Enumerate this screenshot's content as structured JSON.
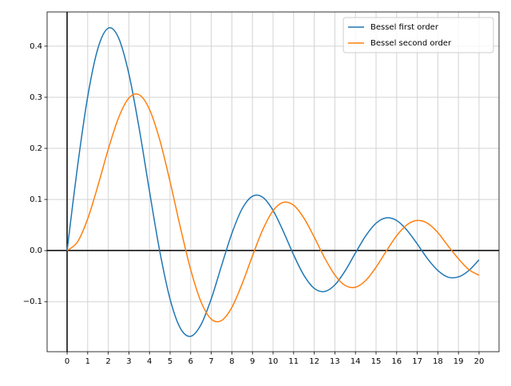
{
  "chart_data": {
    "type": "line",
    "x": [
      0,
      0.5,
      1,
      1.5,
      2,
      2.5,
      3,
      3.5,
      4,
      4.5,
      5,
      5.5,
      6,
      6.5,
      7,
      7.5,
      8,
      8.5,
      9,
      9.5,
      10,
      10.5,
      11,
      11.5,
      12,
      12.5,
      13,
      13.5,
      14,
      14.5,
      15,
      15.5,
      16,
      16.5,
      17,
      17.5,
      18,
      18.5,
      19,
      19.5,
      20
    ],
    "series": [
      {
        "name": "Bessel first order",
        "color": "#1f77b4",
        "values": [
          0,
          0.1625,
          0.3012,
          0.3962,
          0.4354,
          0.4162,
          0.3457,
          0.239,
          0.1161,
          -0.0015,
          -0.0951,
          -0.1522,
          -0.1678,
          -0.1451,
          -0.0943,
          -0.0295,
          0.0337,
          0.0819,
          0.1063,
          0.1042,
          0.0785,
          0.0373,
          -0.0087,
          -0.0486,
          -0.074,
          -0.0802,
          -0.0673,
          -0.0397,
          -0.0047,
          0.0289,
          0.0535,
          0.064,
          0.0588,
          0.0399,
          0.0129,
          -0.016,
          -0.039,
          -0.0521,
          -0.0516,
          -0.0392,
          -0.0181
        ]
      },
      {
        "name": "Bessel second order",
        "color": "#ff7f0e",
        "values": [
          0,
          0.0166,
          0.062,
          0.1274,
          0.1984,
          0.26,
          0.2986,
          0.305,
          0.2763,
          0.2163,
          0.1347,
          0.0453,
          -0.0373,
          -0.1001,
          -0.1343,
          -0.1369,
          -0.1111,
          -0.065,
          -0.0104,
          0.0407,
          0.078,
          0.0944,
          0.0886,
          0.0634,
          0.0262,
          -0.014,
          -0.0478,
          -0.0683,
          -0.0718,
          -0.0585,
          -0.0327,
          -0.0009,
          0.029,
          0.0504,
          0.0589,
          0.0534,
          0.0352,
          0.0088,
          -0.016,
          -0.0371,
          -0.0484
        ]
      }
    ],
    "xlim": [
      -0.97,
      20.97
    ],
    "ylim": [
      -0.198,
      0.467
    ],
    "xticks": [
      0,
      1,
      2,
      3,
      4,
      5,
      6,
      7,
      8,
      9,
      10,
      11,
      12,
      13,
      14,
      15,
      16,
      17,
      18,
      19,
      20
    ],
    "yticks": [
      {
        "value": -0.1,
        "label": "−0.1"
      },
      {
        "value": 0,
        "label": "0.0"
      },
      0.1,
      0.2,
      0.3,
      0.4
    ],
    "grid": true,
    "zero_lines": true,
    "legend": "upper right"
  }
}
